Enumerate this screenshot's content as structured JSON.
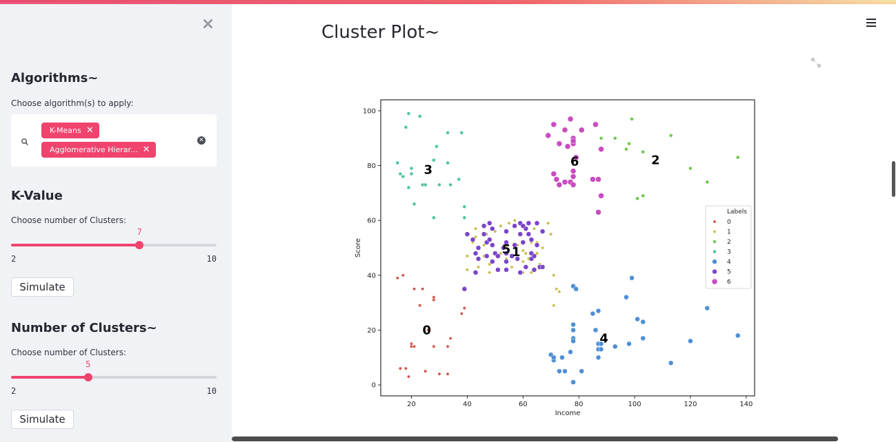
{
  "sidebar": {
    "algorithms_title": "Algorithms~",
    "algorithms_label": "Choose algorithm(s) to apply:",
    "selected_algorithms": [
      "K-Means",
      "Agglomerative Hierar..."
    ],
    "kvalue_title": "K-Value",
    "kvalue_label": "Choose number of Clusters:",
    "kvalue": {
      "value": 7,
      "min": 2,
      "max": 10,
      "value_text": "7",
      "min_text": "2",
      "max_text": "10"
    },
    "simulate_label": "Simulate",
    "nclusters_title": "Number of Clusters~",
    "nclusters_label": "Choose number of Clusters:",
    "nclusters": {
      "value": 5,
      "min": 2,
      "max": 10,
      "value_text": "5",
      "min_text": "2",
      "max_text": "10"
    }
  },
  "main": {
    "title": "Cluster Plot~"
  },
  "icons": [
    "close-icon",
    "search-icon",
    "clear-icon",
    "hamburger-menu-icon",
    "fullscreen-icon"
  ],
  "colors": {
    "accent": "#f0436e",
    "sidebar_bg": "#f0f2f6"
  },
  "chart_data": {
    "type": "scatter",
    "xlabel": "Income",
    "ylabel": "Score",
    "xlim": [
      9,
      143
    ],
    "ylim": [
      -4,
      104
    ],
    "xticks": [
      20,
      40,
      60,
      80,
      100,
      120,
      140
    ],
    "yticks": [
      0,
      20,
      40,
      60,
      80,
      100
    ],
    "legend_title": "Labels",
    "legend_position": "right",
    "series": [
      {
        "name": "0",
        "color": "#d45348",
        "size": 2.2,
        "points": [
          [
            15,
            39
          ],
          [
            17,
            40
          ],
          [
            20,
            14
          ],
          [
            20,
            15
          ],
          [
            21,
            35
          ],
          [
            23,
            29
          ],
          [
            24,
            35
          ],
          [
            25,
            5
          ],
          [
            28,
            14
          ],
          [
            28,
            32
          ],
          [
            28,
            31
          ],
          [
            30,
            4
          ],
          [
            33,
            4
          ],
          [
            33,
            14
          ],
          [
            34,
            17
          ],
          [
            38,
            26
          ],
          [
            39,
            28
          ],
          [
            16,
            6
          ],
          [
            18,
            6
          ],
          [
            19,
            3
          ],
          [
            21,
            14
          ],
          [
            26,
            20
          ]
        ]
      },
      {
        "name": "1",
        "color": "#c7bf45",
        "size": 2.2,
        "points": [
          [
            40,
            42
          ],
          [
            42,
            52
          ],
          [
            43,
            54
          ],
          [
            44,
            43
          ],
          [
            46,
            51
          ],
          [
            47,
            55
          ],
          [
            48,
            41
          ],
          [
            48,
            44
          ],
          [
            50,
            56
          ],
          [
            52,
            48
          ],
          [
            54,
            50
          ],
          [
            54,
            46
          ],
          [
            55,
            59
          ],
          [
            57,
            60
          ],
          [
            58,
            51
          ],
          [
            60,
            49
          ],
          [
            60,
            45
          ],
          [
            60,
            41
          ],
          [
            62,
            46
          ],
          [
            62,
            55
          ],
          [
            63,
            52
          ],
          [
            63,
            41
          ],
          [
            64,
            42
          ],
          [
            65,
            48
          ],
          [
            65,
            52
          ],
          [
            67,
            50
          ],
          [
            67,
            43
          ],
          [
            69,
            59
          ],
          [
            70,
            55
          ],
          [
            71,
            40
          ],
          [
            72,
            35
          ],
          [
            73,
            34
          ],
          [
            71,
            29
          ],
          [
            46,
            47
          ],
          [
            52,
            58
          ],
          [
            56,
            43
          ],
          [
            59,
            55
          ],
          [
            61,
            48
          ],
          [
            64,
            57
          ],
          [
            66,
            44
          ],
          [
            40,
            47
          ],
          [
            43,
            57
          ]
        ]
      },
      {
        "name": "2",
        "color": "#6cc84e",
        "size": 2.5,
        "points": [
          [
            88,
            90
          ],
          [
            93,
            90
          ],
          [
            97,
            86
          ],
          [
            98,
            88
          ],
          [
            99,
            97
          ],
          [
            101,
            68
          ],
          [
            103,
            85
          ],
          [
            103,
            69
          ],
          [
            113,
            91
          ],
          [
            120,
            79
          ],
          [
            126,
            74
          ],
          [
            137,
            83
          ]
        ]
      },
      {
        "name": "3",
        "color": "#4dc59d",
        "size": 2.5,
        "points": [
          [
            15,
            81
          ],
          [
            16,
            77
          ],
          [
            17,
            76
          ],
          [
            18,
            94
          ],
          [
            19,
            99
          ],
          [
            19,
            72
          ],
          [
            20,
            77
          ],
          [
            20,
            79
          ],
          [
            21,
            66
          ],
          [
            23,
            98
          ],
          [
            24,
            73
          ],
          [
            25,
            73
          ],
          [
            28,
            82
          ],
          [
            28,
            61
          ],
          [
            29,
            87
          ],
          [
            30,
            73
          ],
          [
            33,
            81
          ],
          [
            33,
            92
          ],
          [
            34,
            73
          ],
          [
            37,
            75
          ],
          [
            38,
            92
          ],
          [
            39,
            65
          ],
          [
            39,
            61
          ]
        ]
      },
      {
        "name": "4",
        "color": "#4f8fd4",
        "size": 3.5,
        "points": [
          [
            70,
            11
          ],
          [
            71,
            9
          ],
          [
            71,
            10
          ],
          [
            73,
            5
          ],
          [
            74,
            10
          ],
          [
            75,
            5
          ],
          [
            77,
            12
          ],
          [
            78,
            36
          ],
          [
            78,
            22
          ],
          [
            78,
            17
          ],
          [
            78,
            20
          ],
          [
            78,
            1
          ],
          [
            78,
            16
          ],
          [
            79,
            35
          ],
          [
            81,
            5
          ],
          [
            85,
            26
          ],
          [
            86,
            20
          ],
          [
            87,
            27
          ],
          [
            87,
            13
          ],
          [
            87,
            15
          ],
          [
            87,
            10
          ],
          [
            88,
            13
          ],
          [
            88,
            15
          ],
          [
            93,
            14
          ],
          [
            97,
            32
          ],
          [
            98,
            15
          ],
          [
            99,
            39
          ],
          [
            101,
            24
          ],
          [
            103,
            17
          ],
          [
            103,
            23
          ],
          [
            113,
            8
          ],
          [
            120,
            16
          ],
          [
            126,
            28
          ],
          [
            137,
            18
          ]
        ]
      },
      {
        "name": "5",
        "color": "#7b45c9",
        "size": 3.5,
        "points": [
          [
            39,
            35
          ],
          [
            40,
            55
          ],
          [
            42,
            53
          ],
          [
            43,
            48
          ],
          [
            43,
            41
          ],
          [
            44,
            46
          ],
          [
            44,
            50
          ],
          [
            46,
            58
          ],
          [
            46,
            55
          ],
          [
            47,
            47
          ],
          [
            47,
            52
          ],
          [
            48,
            59
          ],
          [
            48,
            53
          ],
          [
            49,
            51
          ],
          [
            49,
            45
          ],
          [
            50,
            48
          ],
          [
            51,
            42
          ],
          [
            53,
            50
          ],
          [
            54,
            56
          ],
          [
            54,
            48
          ],
          [
            54,
            52
          ],
          [
            54,
            45
          ],
          [
            57,
            58
          ],
          [
            57,
            51
          ],
          [
            58,
            46
          ],
          [
            59,
            55
          ],
          [
            59,
            41
          ],
          [
            60,
            52
          ],
          [
            61,
            43
          ],
          [
            62,
            55
          ],
          [
            62,
            59
          ],
          [
            63,
            46
          ],
          [
            63,
            48
          ],
          [
            64,
            42
          ],
          [
            65,
            59
          ],
          [
            65,
            51
          ],
          [
            66,
            43
          ],
          [
            67,
            43
          ],
          [
            67,
            56
          ],
          [
            49,
            57
          ],
          [
            51,
            47
          ],
          [
            56,
            47
          ],
          [
            61,
            57
          ],
          [
            63,
            53
          ],
          [
            54,
            42
          ],
          [
            59,
            59
          ],
          [
            64,
            47
          ],
          [
            60,
            58
          ]
        ]
      },
      {
        "name": "6",
        "color": "#c94cc0",
        "size": 4,
        "points": [
          [
            69,
            91
          ],
          [
            71,
            77
          ],
          [
            71,
            95
          ],
          [
            72,
            75
          ],
          [
            73,
            88
          ],
          [
            73,
            73
          ],
          [
            75,
            93
          ],
          [
            76,
            87
          ],
          [
            77,
            97
          ],
          [
            77,
            74
          ],
          [
            78,
            90
          ],
          [
            78,
            88
          ],
          [
            78,
            76
          ],
          [
            78,
            89
          ],
          [
            78,
            78
          ],
          [
            78,
            73
          ],
          [
            79,
            83
          ],
          [
            81,
            93
          ],
          [
            85,
            75
          ],
          [
            86,
            95
          ],
          [
            87,
            63
          ],
          [
            87,
            75
          ],
          [
            88,
            86
          ],
          [
            88,
            69
          ],
          [
            75,
            74
          ]
        ]
      }
    ],
    "centroid_labels": [
      {
        "text": "0",
        "x": 25.5,
        "y": 20
      },
      {
        "text": "1",
        "x": 57.5,
        "y": 48.5
      },
      {
        "text": "2",
        "x": 107.5,
        "y": 82
      },
      {
        "text": "3",
        "x": 26,
        "y": 78.5
      },
      {
        "text": "4",
        "x": 89,
        "y": 17
      },
      {
        "text": "5",
        "x": 54,
        "y": 49.5
      },
      {
        "text": "6",
        "x": 78.5,
        "y": 81.5
      }
    ]
  }
}
